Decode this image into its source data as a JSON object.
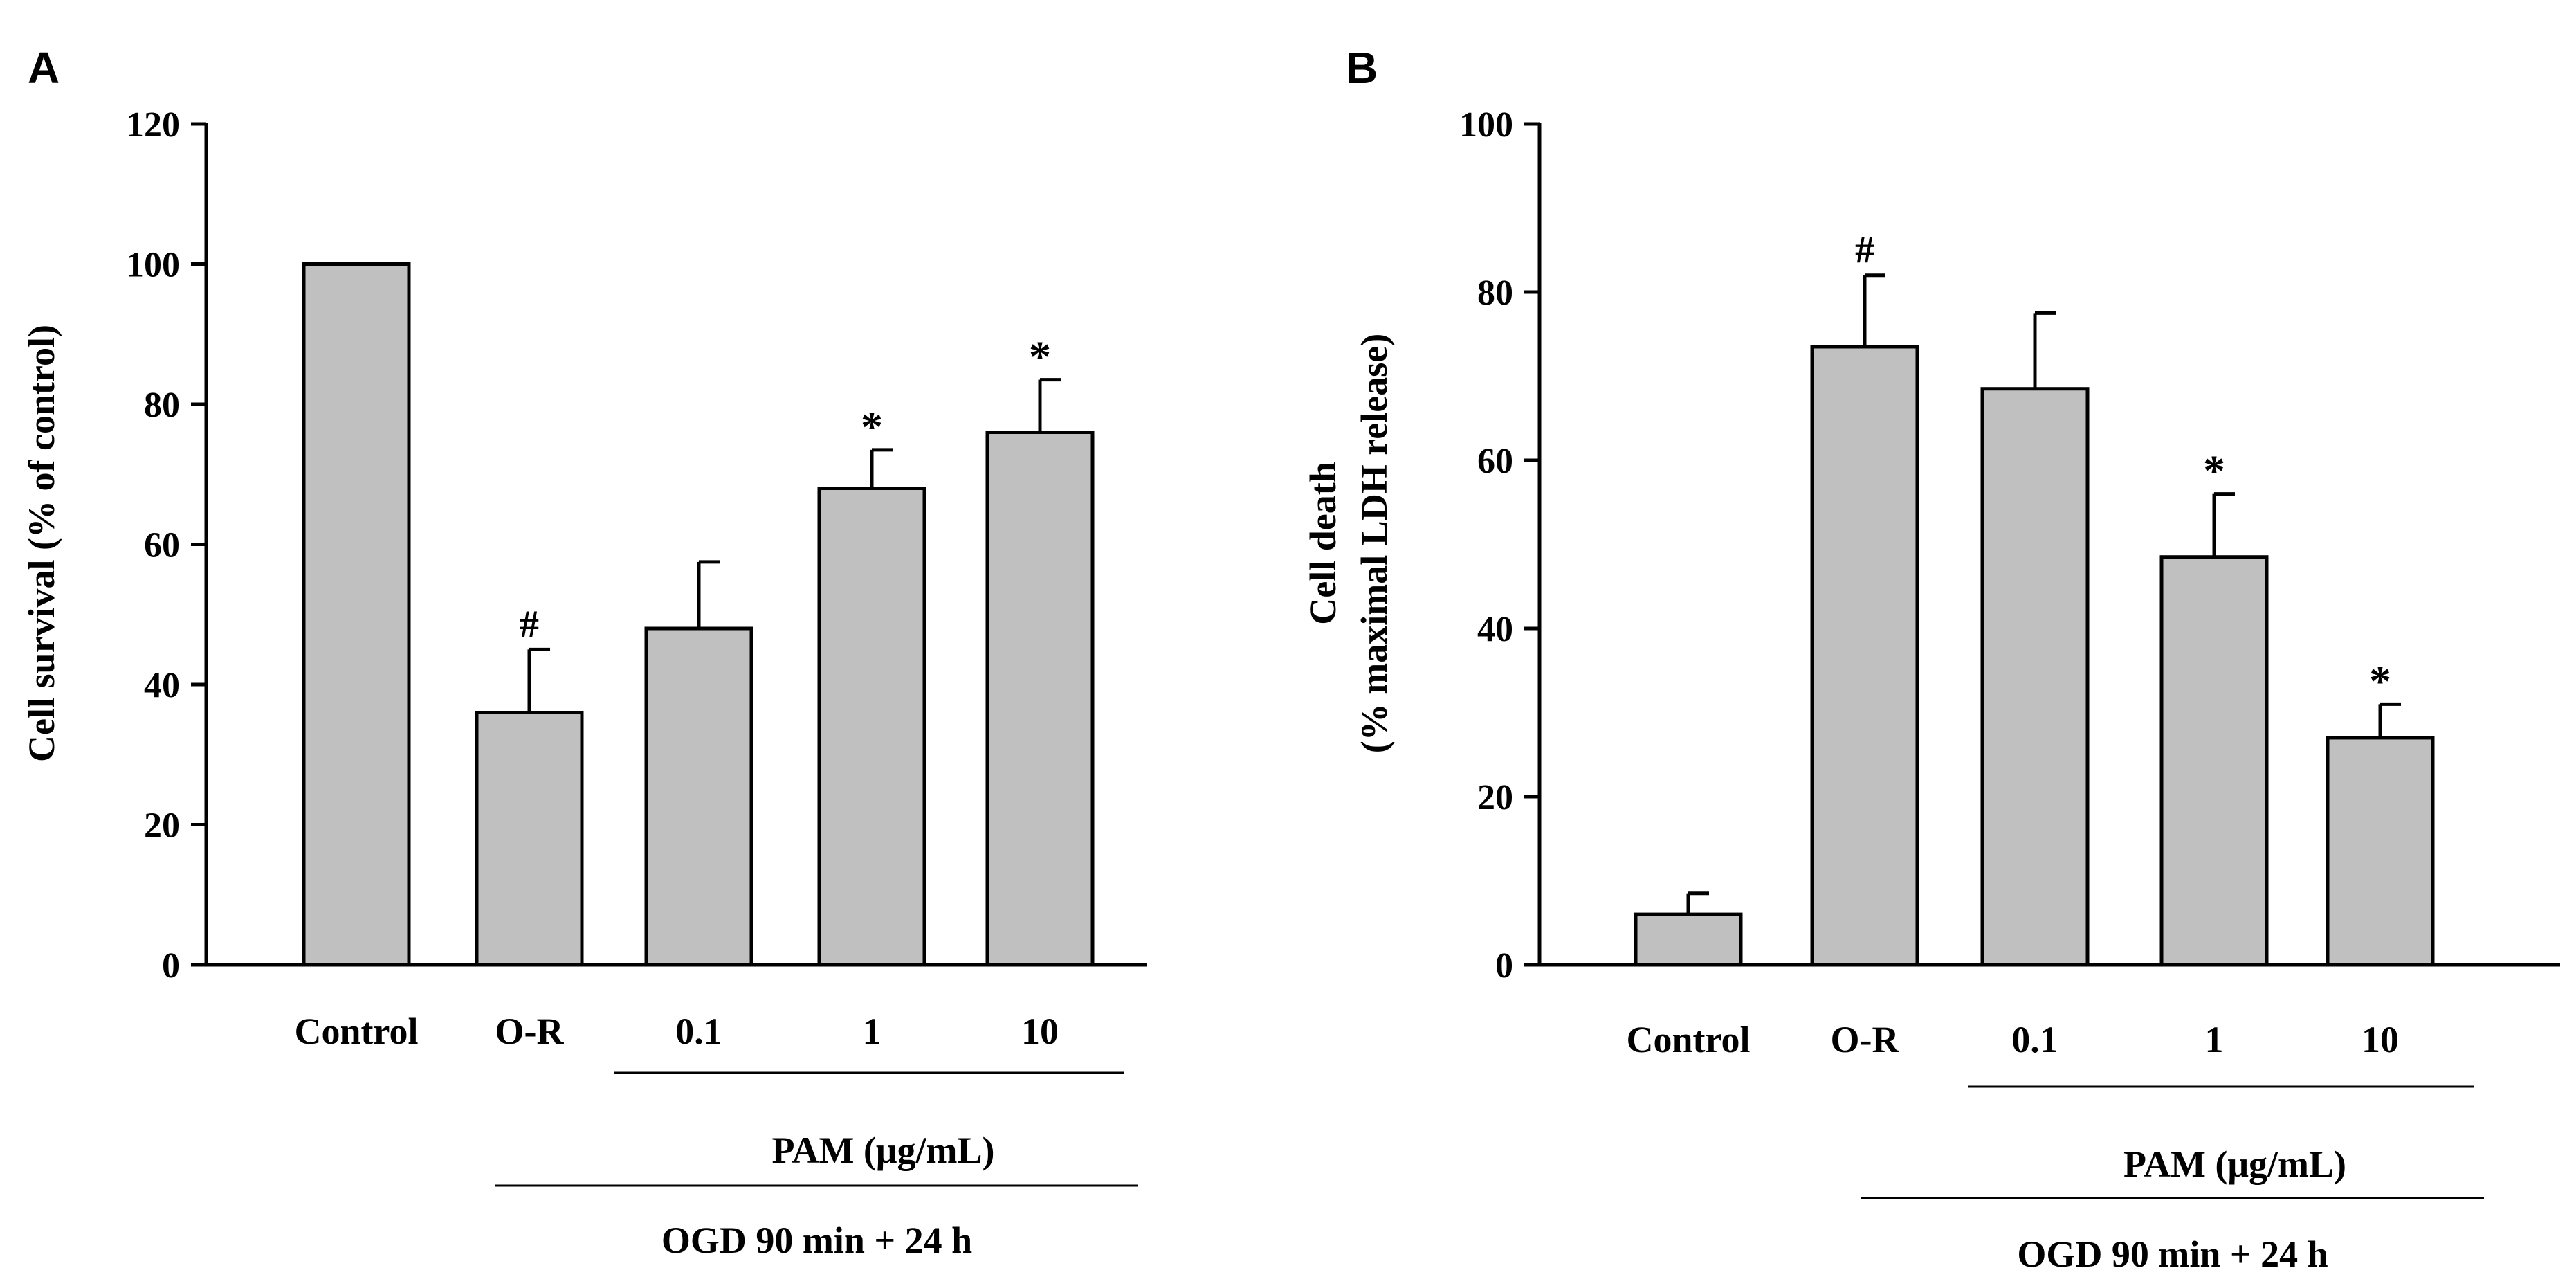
{
  "chart_data": [
    {
      "type": "bar",
      "panel_label": "A",
      "ylabel": "Cell survival (% of control)",
      "ylabel_lines": [
        "Cell survival (% of control)"
      ],
      "ylim": [
        0,
        120
      ],
      "yticks": [
        0,
        20,
        40,
        60,
        80,
        100,
        120
      ],
      "categories": [
        "Control",
        "O-R",
        "0.1",
        "1",
        "10"
      ],
      "values": [
        100,
        36,
        48,
        68,
        76
      ],
      "errors": [
        0,
        9,
        9.5,
        5.5,
        7.5
      ],
      "annotations": [
        "",
        "#",
        "",
        "*",
        "*"
      ],
      "bar_color": "#c0c0c0",
      "group_label_pam": "PAM (μg/mL)",
      "group_label_ogd": "OGD 90 min + 24 h"
    },
    {
      "type": "bar",
      "panel_label": "B",
      "ylabel": "Cell death (% maximal LDH release)",
      "ylabel_lines": [
        "Cell death",
        "(% maximal LDH release)"
      ],
      "ylim": [
        0,
        100
      ],
      "yticks": [
        0,
        20,
        40,
        60,
        80,
        100
      ],
      "categories": [
        "Control",
        "O-R",
        "0.1",
        "1",
        "10"
      ],
      "values": [
        6,
        73.5,
        68.5,
        48.5,
        27
      ],
      "errors": [
        2.5,
        8.5,
        9,
        7.5,
        4
      ],
      "annotations": [
        "",
        "#",
        "",
        "*",
        "*"
      ],
      "bar_color": "#c0c0c0",
      "group_label_pam": "PAM (μg/mL)",
      "group_label_ogd": "OGD 90 min + 24 h"
    }
  ]
}
